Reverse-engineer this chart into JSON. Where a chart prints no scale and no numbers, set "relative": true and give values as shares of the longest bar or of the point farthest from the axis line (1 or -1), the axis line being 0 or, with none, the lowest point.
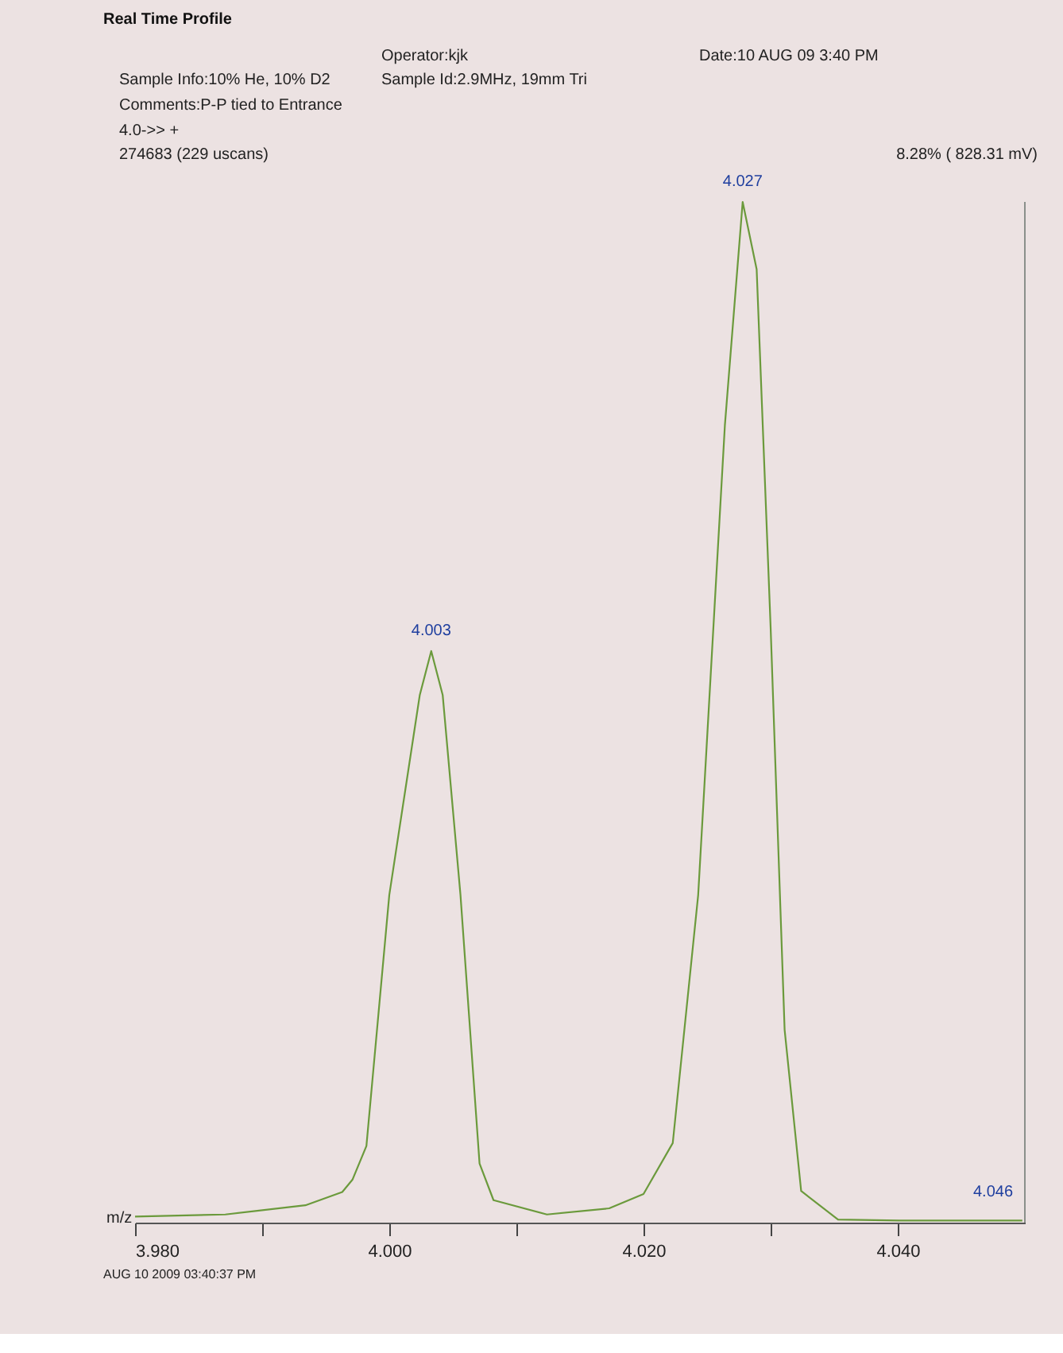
{
  "chart_data": {
    "type": "line",
    "title": "Real Time Profile",
    "xlabel": "m/z",
    "relative": true,
    "xlim": [
      3.98,
      4.05
    ],
    "xticks": [
      {
        "value": 3.98,
        "label": "3.980"
      },
      {
        "value": 3.99,
        "label": null
      },
      {
        "value": 4.0,
        "label": "4.000"
      },
      {
        "value": 4.01,
        "label": null
      },
      {
        "value": 4.02,
        "label": "4.020"
      },
      {
        "value": 4.03,
        "label": null
      },
      {
        "value": 4.04,
        "label": "4.040"
      }
    ],
    "grid": false,
    "marker": "none",
    "line_style": "solid",
    "x": [
      3.98,
      3.9871,
      3.9934,
      3.9963,
      3.9971,
      3.9982,
      4.0,
      4.0024,
      4.0033,
      4.0042,
      4.0056,
      4.0071,
      4.0082,
      4.0124,
      4.0173,
      4.02,
      4.0223,
      4.0243,
      4.0264,
      4.0278,
      4.0289,
      4.03,
      4.0311,
      4.0324,
      4.0353,
      4.0401,
      4.0498
    ],
    "series": [
      {
        "color": "#6b9a3c",
        "values": [
          0.006,
          0.008,
          0.017,
          0.03,
          0.042,
          0.075,
          0.321,
          0.517,
          0.56,
          0.517,
          0.321,
          0.058,
          0.022,
          0.008,
          0.014,
          0.028,
          0.078,
          0.321,
          0.781,
          1.0,
          0.934,
          0.583,
          0.189,
          0.031,
          0.003,
          0.002,
          0.002
        ]
      }
    ],
    "annotations": [
      "Operator:kjk",
      "Date:10 AUG 09  3:40 PM",
      "Sample Info:10% He, 10% D2",
      "Sample Id:2.9MHz, 19mm Tri",
      "Comments:P-P tied to Entrance",
      "4.0->>  +",
      "274683 (229 uscans)",
      "8.28% ( 828.31 mV)",
      "AUG 10 2009  03:40:37 PM",
      {
        "text": "4.003",
        "x": 4.0033,
        "y": 0.56
      },
      {
        "text": "4.027",
        "x": 4.0278,
        "y": 1.0
      },
      {
        "text": "4.046",
        "x": 4.0475,
        "y": 0.01
      }
    ]
  }
}
